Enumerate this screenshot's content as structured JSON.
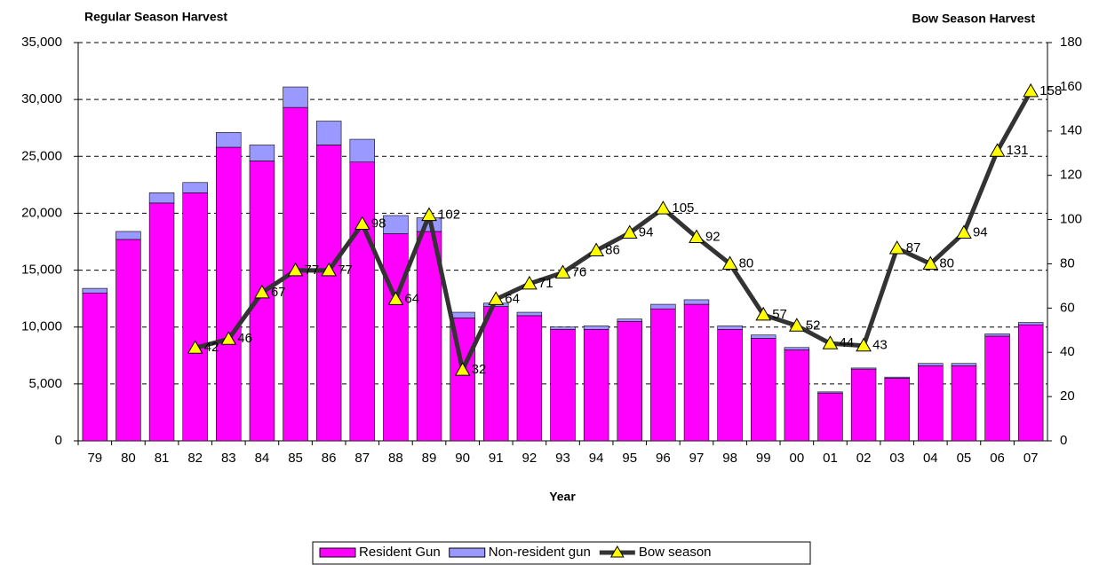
{
  "chart_data": {
    "type": "bar-line",
    "y_label": "Regular Season Harvest",
    "y2_label": "Bow Season Harvest",
    "x_label": "Year",
    "categories": [
      "79",
      "80",
      "81",
      "82",
      "83",
      "84",
      "85",
      "86",
      "87",
      "88",
      "89",
      "90",
      "91",
      "92",
      "93",
      "94",
      "95",
      "96",
      "97",
      "98",
      "99",
      "00",
      "01",
      "02",
      "03",
      "04",
      "05",
      "06",
      "07"
    ],
    "series": [
      {
        "name": "Resident Gun",
        "color": "#ff00ff",
        "type": "bar",
        "values": [
          13000,
          17700,
          20900,
          21800,
          25800,
          24600,
          29300,
          26000,
          24500,
          18200,
          18400,
          10800,
          11800,
          11000,
          9800,
          9800,
          10500,
          11600,
          12000,
          9800,
          9000,
          8000,
          4200,
          6300,
          5500,
          6600,
          6600,
          9200,
          10200
        ]
      },
      {
        "name": "Non-resident gun",
        "color": "#9999ff",
        "type": "bar",
        "values": [
          400,
          700,
          900,
          900,
          1300,
          1400,
          1800,
          2100,
          2000,
          1600,
          1200,
          500,
          300,
          300,
          200,
          300,
          200,
          400,
          400,
          300,
          300,
          200,
          100,
          100,
          100,
          200,
          200,
          200,
          200
        ]
      },
      {
        "name": "Bow season",
        "color": "#333333",
        "marker_color": "#ffff00",
        "type": "line",
        "axis": "y2",
        "values": [
          null,
          null,
          null,
          42,
          46,
          67,
          77,
          77,
          98,
          64,
          102,
          32,
          64,
          71,
          76,
          86,
          94,
          105,
          92,
          80,
          57,
          52,
          44,
          43,
          87,
          80,
          94,
          131,
          158
        ]
      }
    ],
    "ylim": [
      0,
      35000
    ],
    "yticks": [
      0,
      {
        "value": 5000,
        "label": "5,000"
      },
      {
        "value": 10000,
        "label": "10,000"
      },
      {
        "value": 15000,
        "label": "15,000"
      },
      {
        "value": 20000,
        "label": "20,000"
      },
      {
        "value": 25000,
        "label": "25,000"
      },
      {
        "value": 30000,
        "label": "30,000"
      },
      {
        "value": 35000,
        "label": "35,000"
      }
    ],
    "y2lim": [
      0,
      180
    ],
    "y2ticks": [
      0,
      20,
      40,
      60,
      80,
      100,
      120,
      140,
      160,
      180
    ],
    "grid": true,
    "legend": "bottom"
  }
}
